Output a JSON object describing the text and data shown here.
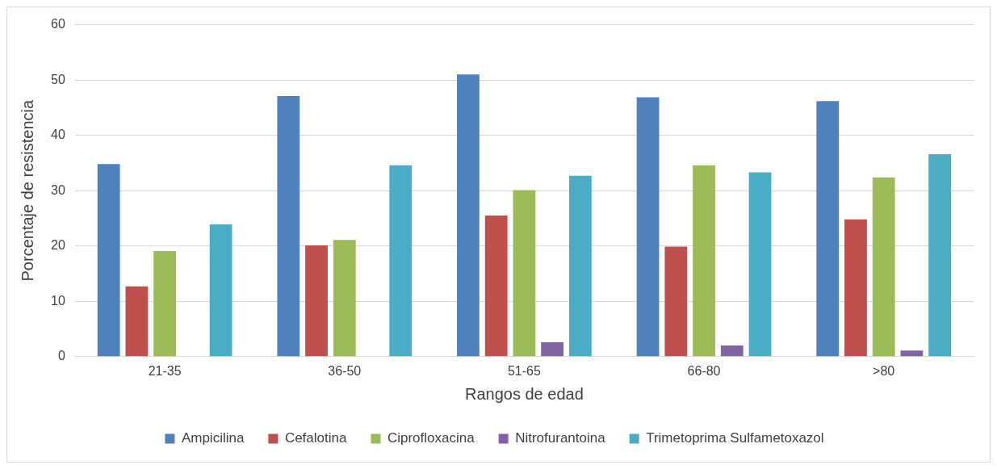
{
  "chart_data": {
    "type": "bar",
    "xlabel": "Rangos de edad",
    "ylabel": "Porcentaje de resistencia",
    "categories": [
      "21-35",
      "36-50",
      "51-65",
      "66-80",
      ">80"
    ],
    "series": [
      {
        "name": "Ampicilina",
        "color": "#4f81bd",
        "values": [
          34.8,
          47.1,
          51.0,
          46.9,
          46.2
        ]
      },
      {
        "name": "Cefalotina",
        "color": "#c0504d",
        "values": [
          12.7,
          20.1,
          25.5,
          19.9,
          24.8
        ]
      },
      {
        "name": "Ciprofloxacina",
        "color": "#9bbb59",
        "values": [
          19.1,
          21.1,
          30.1,
          34.6,
          32.4
        ]
      },
      {
        "name": "Nitrofurantoina",
        "color": "#8064a2",
        "values": [
          0,
          0,
          2.6,
          2.0,
          1.1
        ]
      },
      {
        "name": "Trimetoprima Sulfametoxazol",
        "color": "#4bacc6",
        "values": [
          23.9,
          34.6,
          32.7,
          33.3,
          36.6
        ]
      }
    ],
    "ylim": [
      0,
      60
    ],
    "yticks": [
      0,
      10,
      20,
      30,
      40,
      50,
      60
    ],
    "grid": "y",
    "legend": "bottom"
  }
}
